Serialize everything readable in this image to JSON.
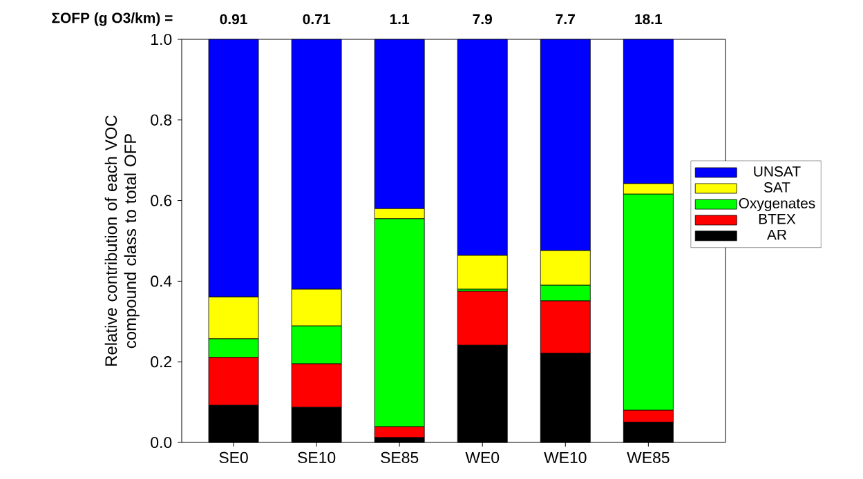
{
  "chart_data": {
    "type": "bar",
    "stacked": true,
    "ylabel": "Relative contribution of each VOC compound class to total OFP",
    "categories": [
      "SE0",
      "SE10",
      "SE85",
      "WE0",
      "WE10",
      "WE85"
    ],
    "series": [
      {
        "name": "AR",
        "color": "#000000",
        "values": [
          0.092,
          0.087,
          0.012,
          0.241,
          0.221,
          0.05
        ]
      },
      {
        "name": "BTEX",
        "color": "#ff0000",
        "values": [
          0.119,
          0.108,
          0.027,
          0.134,
          0.13,
          0.03
        ]
      },
      {
        "name": "Oxygenates",
        "color": "#00ff00",
        "values": [
          0.046,
          0.094,
          0.516,
          0.005,
          0.039,
          0.536
        ]
      },
      {
        "name": "SAT",
        "color": "#ffff00",
        "values": [
          0.104,
          0.091,
          0.025,
          0.084,
          0.086,
          0.026
        ]
      },
      {
        "name": "UNSAT",
        "color": "#0000ff",
        "values": [
          0.639,
          0.62,
          0.42,
          0.536,
          0.524,
          0.358
        ]
      }
    ],
    "ylim": [
      0,
      1
    ],
    "yticks": [
      {
        "value": 0,
        "label": "0.0"
      },
      0.2,
      0.4,
      0.6,
      0.8,
      {
        "value": 1,
        "label": "1.0"
      }
    ],
    "legend": "right",
    "annotations": [
      "ΣOFP (g O3/km) =",
      "0.91",
      "0.71",
      "1.1",
      "7.9",
      "7.7",
      "18.1"
    ]
  }
}
